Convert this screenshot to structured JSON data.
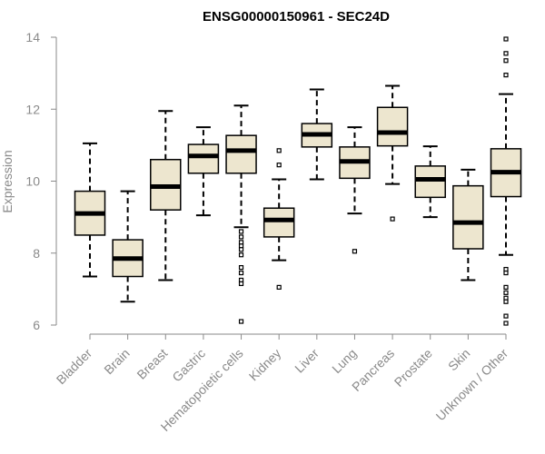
{
  "chart_data": {
    "type": "boxplot",
    "title": "ENSG00000150961 - SEC24D",
    "ylabel": "Expression",
    "xlabel": "",
    "ylim": [
      6,
      14
    ],
    "yticks": [
      6,
      8,
      10,
      12,
      14
    ],
    "grid": false,
    "colors": {
      "box_fill": "#ede6cf",
      "line": "#000000",
      "axis": "#8a8a8a"
    },
    "categories": [
      "Bladder",
      "Brain",
      "Breast",
      "Gastric",
      "Hematopoietic cells",
      "Kidney",
      "Liver",
      "Lung",
      "Pancreas",
      "Prostate",
      "Skin",
      "Unknown / Other"
    ],
    "boxes": [
      {
        "category": "Bladder",
        "whisker_low": 7.35,
        "q1": 8.5,
        "median": 9.1,
        "q3": 9.72,
        "whisker_high": 11.05,
        "outliers": []
      },
      {
        "category": "Brain",
        "whisker_low": 6.65,
        "q1": 7.35,
        "median": 7.85,
        "q3": 8.37,
        "whisker_high": 9.72,
        "outliers": []
      },
      {
        "category": "Breast",
        "whisker_low": 7.25,
        "q1": 9.2,
        "median": 9.85,
        "q3": 10.6,
        "whisker_high": 11.95,
        "outliers": []
      },
      {
        "category": "Gastric",
        "whisker_low": 9.05,
        "q1": 10.22,
        "median": 10.7,
        "q3": 11.02,
        "whisker_high": 11.5,
        "outliers": []
      },
      {
        "category": "Hematopoietic cells",
        "whisker_low": 8.72,
        "q1": 10.22,
        "median": 10.85,
        "q3": 11.27,
        "whisker_high": 12.1,
        "outliers": [
          8.6,
          8.45,
          8.3,
          8.2,
          8.1,
          7.95,
          7.6,
          7.45,
          7.25,
          7.15,
          6.1
        ]
      },
      {
        "category": "Kidney",
        "whisker_low": 7.8,
        "q1": 8.45,
        "median": 8.92,
        "q3": 9.25,
        "whisker_high": 10.05,
        "outliers": [
          10.85,
          10.45,
          7.05
        ]
      },
      {
        "category": "Liver",
        "whisker_low": 10.05,
        "q1": 10.95,
        "median": 11.3,
        "q3": 11.6,
        "whisker_high": 12.55,
        "outliers": []
      },
      {
        "category": "Lung",
        "whisker_low": 9.1,
        "q1": 10.08,
        "median": 10.55,
        "q3": 10.95,
        "whisker_high": 11.5,
        "outliers": [
          8.05
        ]
      },
      {
        "category": "Pancreas",
        "whisker_low": 9.92,
        "q1": 10.98,
        "median": 11.35,
        "q3": 12.05,
        "whisker_high": 12.65,
        "outliers": [
          8.95
        ]
      },
      {
        "category": "Prostate",
        "whisker_low": 9.0,
        "q1": 9.55,
        "median": 10.05,
        "q3": 10.42,
        "whisker_high": 10.97,
        "outliers": []
      },
      {
        "category": "Skin",
        "whisker_low": 7.25,
        "q1": 8.12,
        "median": 8.85,
        "q3": 9.87,
        "whisker_high": 10.32,
        "outliers": []
      },
      {
        "category": "Unknown / Other",
        "whisker_low": 7.95,
        "q1": 9.57,
        "median": 10.25,
        "q3": 10.9,
        "whisker_high": 12.42,
        "outliers": [
          13.95,
          13.55,
          13.35,
          12.95,
          7.55,
          7.45,
          7.05,
          6.9,
          6.75,
          6.65,
          6.25,
          6.05
        ]
      }
    ]
  }
}
